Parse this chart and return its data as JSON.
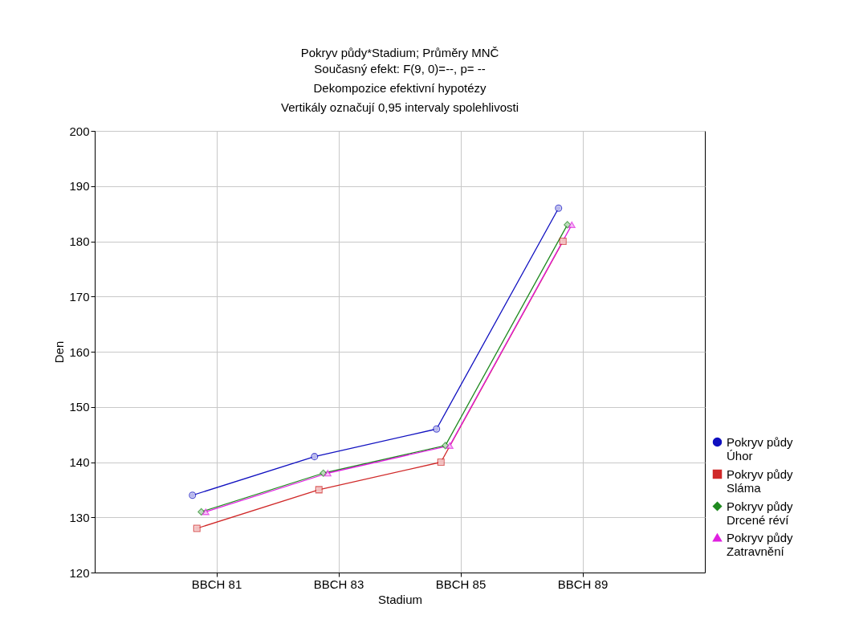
{
  "chart_data": {
    "type": "line",
    "title": "Pokryv půdy*Stadium; Průměry MNČ",
    "subtitle": "Současný efekt: F(9, 0)=--, p=  --",
    "annotations": [
      "Dekompozice efektivní hypotézy",
      "Vertikály označují 0,95 intervaly spolehlivosti"
    ],
    "xlabel": "Stadium",
    "ylabel": "Den",
    "categories": [
      "BBCH 81",
      "BBCH 83",
      "BBCH 85",
      "BBCH 89"
    ],
    "series": [
      {
        "name": "Pokryv půdy Úhor",
        "color": "#1010c0",
        "marker": "circle",
        "values": [
          134,
          141,
          146,
          186
        ]
      },
      {
        "name": "Pokryv půdy Sláma",
        "color": "#d02828",
        "marker": "square",
        "values": [
          128,
          135,
          140,
          180
        ]
      },
      {
        "name": "Pokryv půdy Drcené réví",
        "color": "#208a20",
        "marker": "diamond",
        "values": [
          131,
          138,
          143,
          183
        ]
      },
      {
        "name": "Pokryv půdy Zatravnění",
        "color": "#e020e0",
        "marker": "triangle",
        "values": [
          131,
          138,
          143,
          183
        ]
      }
    ],
    "ylim": [
      120,
      200
    ],
    "yticks": [
      120,
      130,
      140,
      150,
      160,
      170,
      180,
      190,
      200
    ],
    "grid": true,
    "legend": "bottom right",
    "line_style": "solid"
  }
}
